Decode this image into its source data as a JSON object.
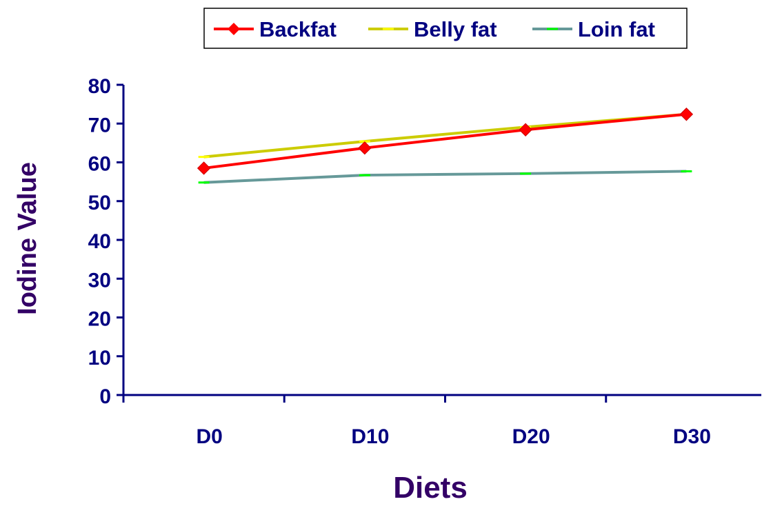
{
  "chart_data": {
    "type": "line",
    "categories": [
      "D0",
      "D10",
      "D20",
      "D30"
    ],
    "series": [
      {
        "name": "Backfat",
        "values": [
          58.5,
          63.7,
          68.4,
          72.4
        ],
        "color": "#ff0000",
        "marker": "diamond",
        "marker_color": "#ff0000"
      },
      {
        "name": "Belly fat",
        "values": [
          61.4,
          65.4,
          69.1,
          72.4
        ],
        "color": "#cccc00",
        "marker": "dash",
        "marker_color": "#ffff00"
      },
      {
        "name": "Loin fat",
        "values": [
          54.8,
          56.7,
          57.1,
          57.7
        ],
        "color": "#669999",
        "marker": "dash",
        "marker_color": "#00ff00"
      }
    ],
    "xlabel": "Diets",
    "ylabel": "Iodine Value",
    "ylim": [
      0,
      80
    ],
    "yticks": [
      0,
      10,
      20,
      30,
      40,
      50,
      60,
      70,
      80
    ],
    "grid": false,
    "legend_position": "top"
  },
  "colors": {
    "tick_label": "#000080",
    "axis_title": "#330066",
    "axis_line": "#000080"
  }
}
